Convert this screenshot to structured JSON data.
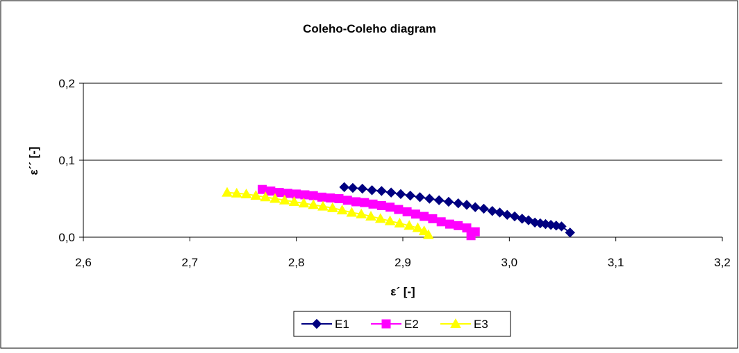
{
  "chart_data": {
    "type": "scatter",
    "title": "Coleho-Coleho diagram",
    "xlabel": "ε´ [-]",
    "ylabel": "ε´´ [-]",
    "xlim": [
      2.6,
      3.2
    ],
    "ylim": [
      0.0,
      0.2
    ],
    "x_ticks": [
      "2,6",
      "2,7",
      "2,8",
      "2,9",
      "3,0",
      "3,1",
      "3,2"
    ],
    "y_ticks": [
      "0,0",
      "0,1",
      "0,2"
    ],
    "x_tick_values": [
      2.6,
      2.7,
      2.8,
      2.9,
      3.0,
      3.1,
      3.2
    ],
    "y_tick_values": [
      0.0,
      0.1,
      0.2
    ],
    "grid": "horizontal",
    "legend_position": "bottom",
    "series": [
      {
        "name": "E1",
        "marker": "diamond",
        "color": "#000080",
        "x": [
          2.845,
          2.853,
          2.862,
          2.871,
          2.88,
          2.889,
          2.898,
          2.907,
          2.916,
          2.925,
          2.934,
          2.943,
          2.952,
          2.96,
          2.968,
          2.976,
          2.984,
          2.991,
          2.998,
          3.005,
          3.012,
          3.018,
          3.024,
          3.029,
          3.034,
          3.039,
          3.044,
          3.049,
          3.057
        ],
        "y": [
          0.065,
          0.064,
          0.063,
          0.061,
          0.06,
          0.058,
          0.056,
          0.054,
          0.052,
          0.05,
          0.048,
          0.046,
          0.044,
          0.042,
          0.039,
          0.037,
          0.034,
          0.032,
          0.029,
          0.027,
          0.024,
          0.022,
          0.019,
          0.018,
          0.017,
          0.016,
          0.015,
          0.014,
          0.006
        ]
      },
      {
        "name": "E2",
        "marker": "square",
        "color": "#FF00FF",
        "x": [
          2.768,
          2.776,
          2.784,
          2.792,
          2.8,
          2.808,
          2.816,
          2.824,
          2.832,
          2.84,
          2.848,
          2.856,
          2.864,
          2.872,
          2.88,
          2.888,
          2.896,
          2.904,
          2.912,
          2.92,
          2.928,
          2.936,
          2.944,
          2.952,
          2.96,
          2.964,
          2.968
        ],
        "y": [
          0.062,
          0.06,
          0.058,
          0.057,
          0.056,
          0.055,
          0.054,
          0.052,
          0.051,
          0.05,
          0.048,
          0.046,
          0.045,
          0.043,
          0.041,
          0.039,
          0.036,
          0.033,
          0.03,
          0.027,
          0.024,
          0.02,
          0.017,
          0.015,
          0.012,
          0.002,
          0.007
        ]
      },
      {
        "name": "E3",
        "marker": "triangle",
        "color": "#FFFF00",
        "x": [
          2.735,
          2.744,
          2.753,
          2.762,
          2.771,
          2.78,
          2.789,
          2.798,
          2.807,
          2.816,
          2.825,
          2.834,
          2.843,
          2.852,
          2.861,
          2.87,
          2.879,
          2.888,
          2.897,
          2.906,
          2.914,
          2.92,
          2.924
        ],
        "y": [
          0.058,
          0.057,
          0.056,
          0.054,
          0.052,
          0.05,
          0.048,
          0.046,
          0.044,
          0.042,
          0.04,
          0.038,
          0.035,
          0.032,
          0.03,
          0.027,
          0.024,
          0.021,
          0.018,
          0.015,
          0.012,
          0.008,
          0.003
        ]
      }
    ]
  }
}
